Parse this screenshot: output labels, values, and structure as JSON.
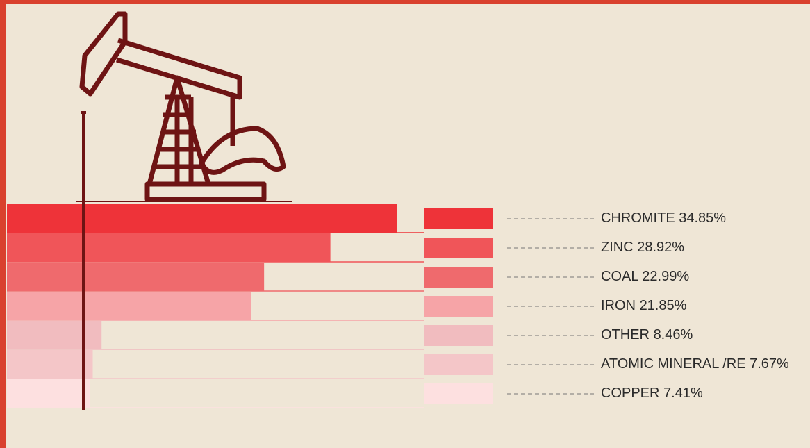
{
  "chart_data": {
    "type": "bar",
    "orientation": "horizontal",
    "categories": [
      "CHROMITE",
      "ZINC",
      "COAL",
      "IRON",
      "OTHER",
      "ATOMIC MINERAL /RE",
      "COPPER"
    ],
    "values": [
      34.85,
      28.92,
      22.99,
      21.85,
      8.46,
      7.67,
      7.41
    ],
    "value_labels": [
      "34.85%",
      "28.92%",
      "22.99%",
      "21.85%",
      "8.46%",
      "7.67%",
      "7.41%"
    ],
    "colors": [
      "#ee3339",
      "#f05559",
      "#ef6a6d",
      "#f6a4a7",
      "#f1bcbf",
      "#f4c6c8",
      "#fde0e0"
    ]
  }
}
